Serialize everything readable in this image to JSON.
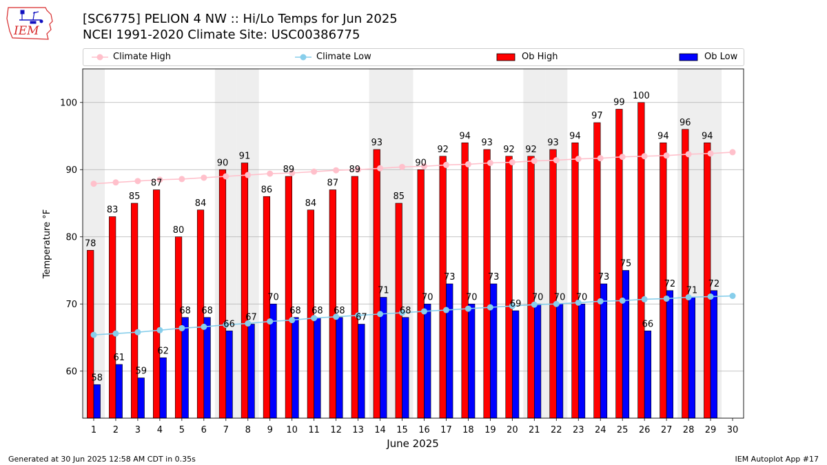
{
  "header": {
    "logo_text": "IEM",
    "title": "[SC6775] PELION 4 NW :: Hi/Lo Temps for Jun 2025",
    "subtitle": "NCEI 1991-2020 Climate Site: USC00386775"
  },
  "legend": {
    "climate_high": "Climate High",
    "climate_low": "Climate Low",
    "ob_high": "Ob High",
    "ob_low": "Ob Low"
  },
  "footer": {
    "generated": "Generated at 30 Jun 2025 12:58 AM CDT in 0.35s",
    "app": "IEM Autoplot App #17"
  },
  "colors": {
    "ob_high": "#ff0000",
    "ob_low": "#0000ff",
    "climate_high": "#ffc0cb",
    "climate_low": "#87ceeb",
    "weekend_shade": "#eeeeee",
    "grid": "#b0b0b0"
  },
  "chart_data": {
    "type": "bar",
    "xlabel": "June 2025",
    "ylabel": "Temperature °F",
    "ylim": [
      53,
      105
    ],
    "yticks": [
      60,
      70,
      80,
      90,
      100
    ],
    "grid": "horizontal",
    "legend_position": "top",
    "categories": [
      1,
      2,
      3,
      4,
      5,
      6,
      7,
      8,
      9,
      10,
      11,
      12,
      13,
      14,
      15,
      16,
      17,
      18,
      19,
      20,
      21,
      22,
      23,
      24,
      25,
      26,
      27,
      28,
      29,
      30
    ],
    "shaded_days": [
      1,
      7,
      8,
      14,
      15,
      21,
      22,
      28,
      29
    ],
    "series": [
      {
        "name": "Ob High",
        "kind": "bar",
        "values": [
          78,
          83,
          85,
          87,
          80,
          84,
          90,
          91,
          86,
          89,
          84,
          87,
          89,
          93,
          85,
          90,
          92,
          94,
          93,
          92,
          92,
          93,
          94,
          97,
          99,
          100,
          94,
          96,
          94,
          null
        ]
      },
      {
        "name": "Ob Low",
        "kind": "bar",
        "values": [
          58,
          61,
          59,
          62,
          68,
          68,
          66,
          67,
          70,
          68,
          68,
          68,
          67,
          71,
          68,
          70,
          73,
          70,
          73,
          69,
          70,
          70,
          70,
          73,
          75,
          66,
          72,
          71,
          72,
          null
        ]
      },
      {
        "name": "Climate High",
        "kind": "line",
        "values": [
          87.9,
          88.1,
          88.3,
          88.5,
          88.6,
          88.8,
          89.0,
          89.2,
          89.4,
          89.5,
          89.7,
          89.9,
          90.0,
          90.2,
          90.4,
          90.5,
          90.7,
          90.8,
          91.0,
          91.1,
          91.3,
          91.4,
          91.6,
          91.7,
          91.9,
          92.0,
          92.1,
          92.3,
          92.4,
          92.6
        ]
      },
      {
        "name": "Climate Low",
        "kind": "line",
        "values": [
          65.4,
          65.6,
          65.8,
          66.1,
          66.4,
          66.6,
          66.9,
          67.1,
          67.4,
          67.6,
          67.9,
          68.1,
          68.3,
          68.5,
          68.7,
          68.9,
          69.1,
          69.3,
          69.5,
          69.7,
          69.9,
          70.0,
          70.2,
          70.4,
          70.5,
          70.7,
          70.8,
          71.0,
          71.1,
          71.2
        ]
      }
    ]
  }
}
